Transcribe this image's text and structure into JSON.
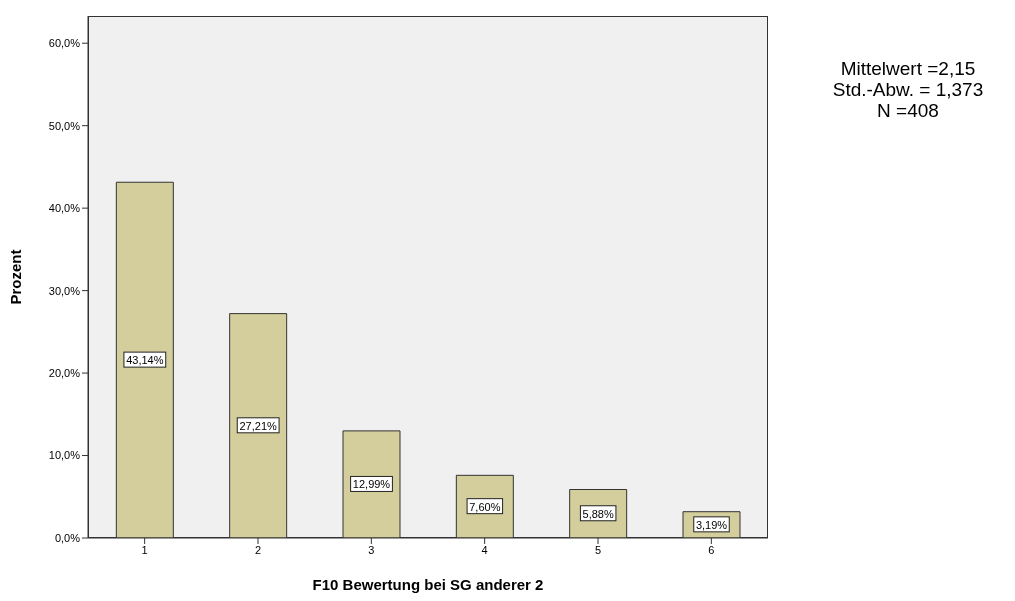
{
  "chart_data": {
    "type": "bar",
    "xlabel": "F10 Bewertung bei SG anderer 2",
    "ylabel": "Prozent",
    "categories": [
      "1",
      "2",
      "3",
      "4",
      "5",
      "6"
    ],
    "values": [
      43.14,
      27.21,
      12.99,
      7.6,
      5.88,
      3.19
    ],
    "value_labels": [
      "43,14%",
      "27,21%",
      "12,99%",
      "7,60%",
      "5,88%",
      "3,19%"
    ],
    "color": "#d3ce9b",
    "ylim": [
      0,
      63.3
    ],
    "yticks": [
      {
        "value": 0,
        "label": "0,0%"
      },
      {
        "value": 10,
        "label": "10,0%"
      },
      {
        "value": 20,
        "label": "20,0%"
      },
      {
        "value": 30,
        "label": "30,0%"
      },
      {
        "value": 40,
        "label": "40,0%"
      },
      {
        "value": 50,
        "label": "50,0%"
      },
      {
        "value": 60,
        "label": "60,0%"
      }
    ],
    "annotations": [
      "Mittelwert =2,15",
      "Std.-Abw. = 1,373",
      "N =408"
    ],
    "grid": false,
    "legend": false
  }
}
